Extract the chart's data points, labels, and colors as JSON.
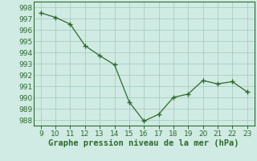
{
  "x": [
    9,
    10,
    11,
    12,
    13,
    14,
    15,
    16,
    17,
    18,
    19,
    20,
    21,
    22,
    23
  ],
  "y": [
    997.5,
    997.1,
    996.5,
    994.6,
    993.7,
    992.9,
    989.6,
    987.9,
    988.5,
    990.0,
    990.3,
    991.5,
    991.2,
    991.4,
    990.5
  ],
  "ylim": [
    987.5,
    998.5
  ],
  "xlim": [
    8.5,
    23.5
  ],
  "yticks": [
    988,
    989,
    990,
    991,
    992,
    993,
    994,
    995,
    996,
    997,
    998
  ],
  "xticks": [
    9,
    10,
    11,
    12,
    13,
    14,
    15,
    16,
    17,
    18,
    19,
    20,
    21,
    22,
    23
  ],
  "line_color": "#2d6a2d",
  "marker_color": "#2d6a2d",
  "bg_color": "#d0ebe3",
  "grid_color": "#a0c8b8",
  "border_color": "#2d6a2d",
  "xlabel": "Graphe pression niveau de la mer (hPa)",
  "xlabel_fontsize": 7.5,
  "tick_fontsize": 6.5,
  "tick_color": "#2d6a2d",
  "label_color": "#2d6a2d"
}
